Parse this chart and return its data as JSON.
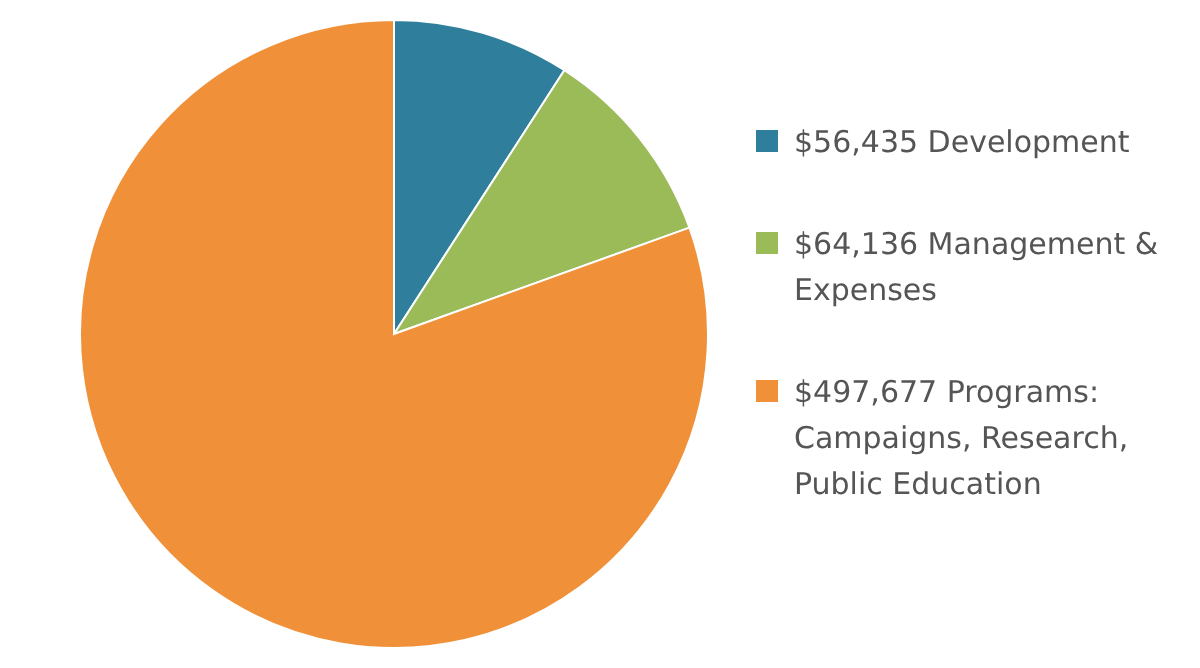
{
  "chart_data": {
    "type": "pie",
    "categories": [
      "$56,435 Development",
      "$64,136 Management & Expenses",
      "$497,677 Programs: Campaigns, Research, Public Education"
    ],
    "values": [
      56435,
      64136,
      497677
    ],
    "colors": [
      "#2f7f9c",
      "#9bbb59",
      "#f0913a"
    ],
    "legend": "right"
  }
}
